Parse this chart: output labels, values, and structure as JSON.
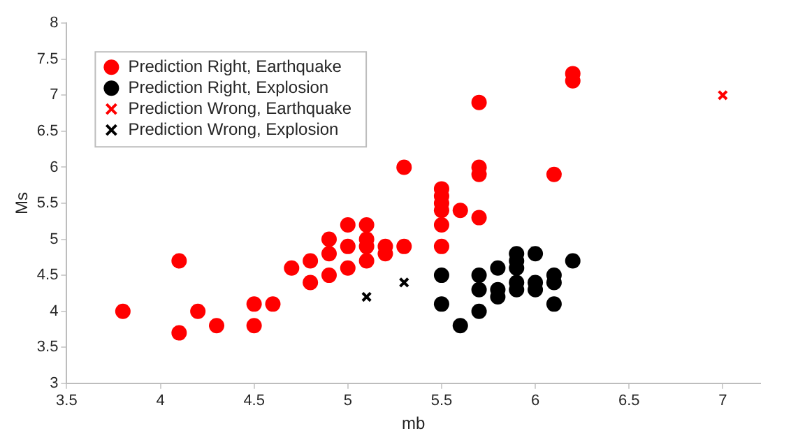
{
  "chart_data": {
    "type": "scatter",
    "xlabel": "mb",
    "ylabel": "Ms",
    "xlim": [
      3.5,
      7.2
    ],
    "xticks": [
      3.5,
      4,
      4.5,
      5,
      5.5,
      6,
      6.5,
      7
    ],
    "ylim": [
      3,
      8
    ],
    "yticks": [
      3,
      3.5,
      4,
      4.5,
      5,
      5.5,
      6,
      6.5,
      7,
      7.5,
      8
    ],
    "grid": false,
    "legend": "top left",
    "series": [
      {
        "name": "Prediction Right, Earthquake",
        "color": "#ff0000",
        "marker": "circle",
        "x": [
          3.8,
          4.1,
          4.1,
          4.2,
          4.3,
          4.5,
          4.5,
          4.6,
          4.7,
          4.8,
          4.8,
          4.9,
          4.9,
          4.9,
          5.0,
          5.0,
          5.0,
          5.1,
          5.1,
          5.1,
          5.1,
          5.2,
          5.2,
          5.3,
          5.3,
          5.5,
          5.5,
          5.5,
          5.5,
          5.5,
          5.5,
          5.6,
          5.7,
          5.7,
          5.7,
          5.7,
          6.1,
          6.2,
          6.2
        ],
        "values": [
          4.0,
          4.7,
          3.7,
          4.0,
          3.8,
          4.1,
          3.8,
          4.1,
          4.6,
          4.7,
          4.4,
          5.0,
          4.8,
          4.5,
          5.2,
          4.9,
          4.6,
          5.2,
          5.0,
          4.9,
          4.7,
          4.9,
          4.8,
          6.0,
          4.9,
          5.7,
          5.6,
          5.5,
          5.4,
          5.2,
          4.9,
          5.4,
          6.9,
          6.0,
          5.9,
          5.3,
          5.9,
          7.3,
          7.2
        ]
      },
      {
        "name": "Prediction Right, Explosion",
        "color": "#000000",
        "marker": "circle",
        "x": [
          5.5,
          5.5,
          5.6,
          5.7,
          5.7,
          5.7,
          5.8,
          5.8,
          5.8,
          5.9,
          5.9,
          5.9,
          5.9,
          5.9,
          6.0,
          6.0,
          6.0,
          6.1,
          6.1,
          6.1,
          6.2
        ],
        "values": [
          4.5,
          4.1,
          3.8,
          4.5,
          4.3,
          4.0,
          4.6,
          4.3,
          4.2,
          4.8,
          4.7,
          4.6,
          4.4,
          4.3,
          4.8,
          4.4,
          4.3,
          4.5,
          4.4,
          4.1,
          4.7
        ]
      },
      {
        "name": "Prediction Wrong, Earthquake",
        "color": "#ff0000",
        "marker": "cross",
        "x": [
          7.0
        ],
        "values": [
          7.0
        ]
      },
      {
        "name": "Prediction Wrong, Explosion",
        "color": "#000000",
        "marker": "cross",
        "x": [
          5.1,
          5.3
        ],
        "values": [
          4.2,
          4.4
        ]
      }
    ]
  }
}
